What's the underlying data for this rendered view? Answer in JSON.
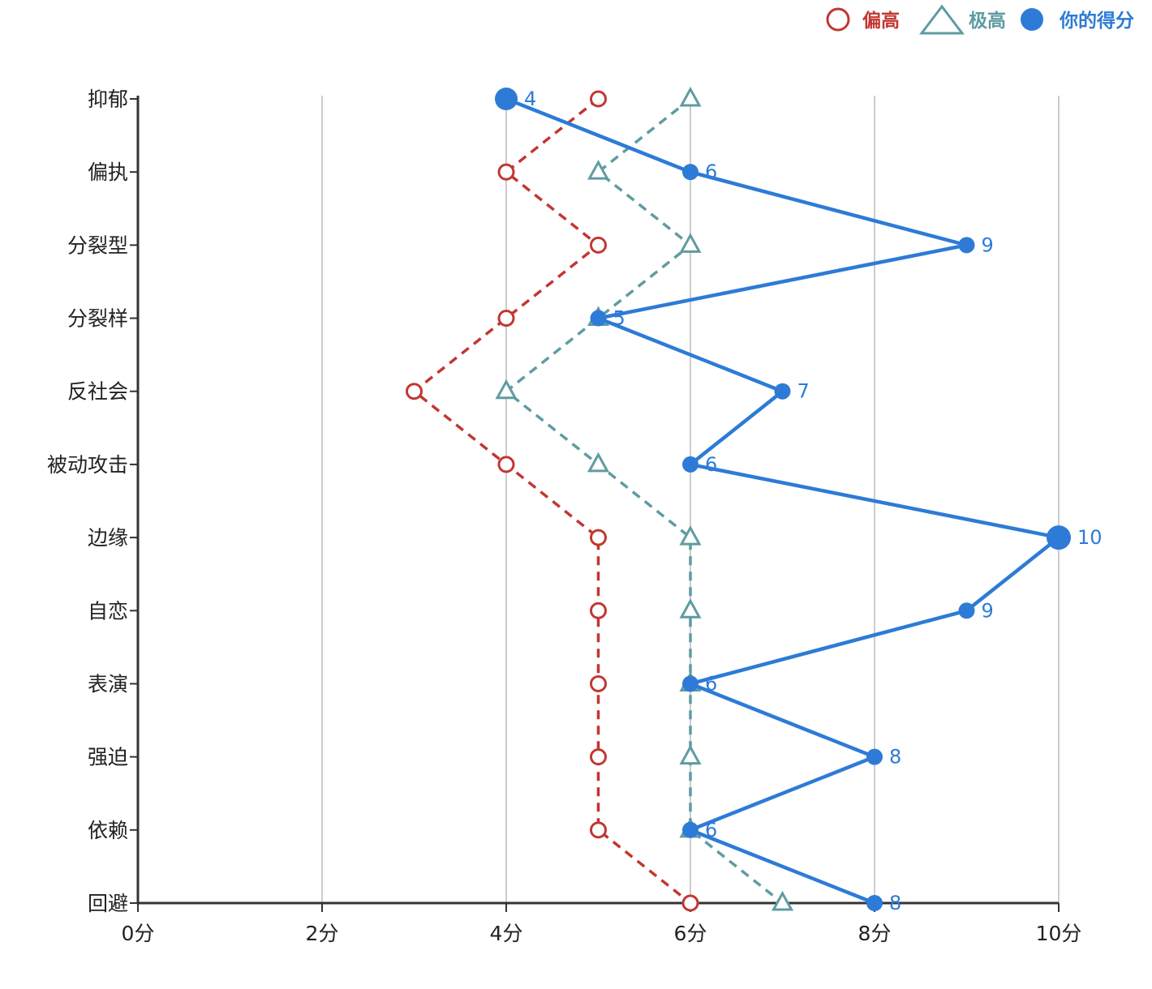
{
  "chart_data": {
    "type": "line",
    "orientation": "categories-on-y-axis",
    "title": "",
    "categories": [
      "抑郁",
      "偏执",
      "分裂型",
      "分裂样",
      "反社会",
      "被动攻击",
      "边缘",
      "自恋",
      "表演",
      "强迫",
      "依赖",
      "回避"
    ],
    "x_axis": {
      "min": 0,
      "max": 10,
      "tick_values": [
        0,
        2,
        4,
        6,
        8,
        10
      ],
      "tick_labels": [
        "0分",
        "2分",
        "4分",
        "6分",
        "8分",
        "10分"
      ],
      "grid": true
    },
    "series": [
      {
        "slug": "elevated",
        "name": "偏高",
        "color": "#c23732",
        "line_style": "dashed",
        "marker": "hollow-circle",
        "values": [
          5,
          4,
          5,
          4,
          3,
          4,
          5,
          5,
          5,
          5,
          5,
          6
        ],
        "show_value_labels": false,
        "emphasized_indices": []
      },
      {
        "slug": "very-high",
        "name": "极高",
        "color": "#5f9ca1",
        "line_style": "dashed",
        "marker": "hollow-triangle",
        "values": [
          6,
          5,
          6,
          5,
          4,
          5,
          6,
          6,
          6,
          6,
          6,
          7
        ],
        "show_value_labels": false,
        "emphasized_indices": []
      },
      {
        "slug": "your-score",
        "name": "你的得分",
        "color": "#2d7bd6",
        "line_style": "solid",
        "marker": "filled-circle",
        "values": [
          4,
          6,
          9,
          5,
          7,
          6,
          10,
          9,
          6,
          8,
          6,
          8
        ],
        "show_value_labels": true,
        "emphasized_indices": [
          0,
          6
        ]
      }
    ],
    "legend": {
      "position": "top-right",
      "items": [
        "偏高",
        "极高",
        "你的得分"
      ]
    },
    "colors": {
      "axis_line": "#333333",
      "axis_label": "#222222",
      "grid_line": "#cccccc",
      "background": "#ffffff"
    }
  }
}
